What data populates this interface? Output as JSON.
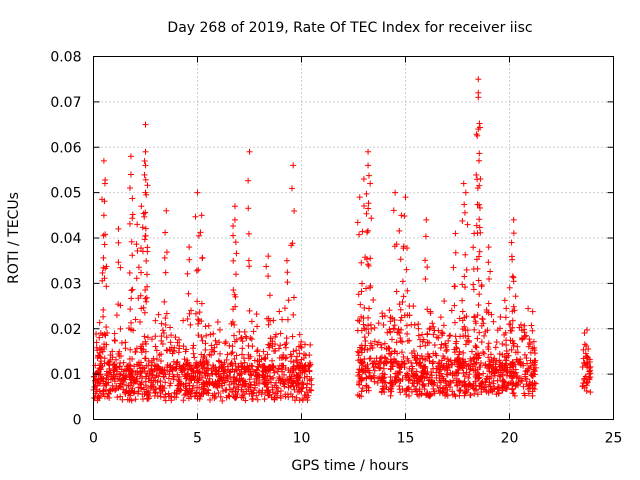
{
  "chart_data": {
    "type": "scatter",
    "title": "Day 268 of 2019, Rate Of TEC Index for receiver iisc",
    "xlabel": "GPS time / hours",
    "ylabel": "ROTI / TECUs",
    "xlim": [
      0,
      25
    ],
    "ylim": [
      0,
      0.08
    ],
    "x_ticks": [
      0,
      5,
      10,
      15,
      20,
      25
    ],
    "y_ticks": [
      0,
      0.01,
      0.02,
      0.03,
      0.04,
      0.05,
      0.06,
      0.07,
      0.08
    ],
    "y_tick_labels": [
      "0",
      "0.01",
      "0.02",
      "0.03",
      "0.04",
      "0.05",
      "0.06",
      "0.07",
      "0.08"
    ],
    "grid": true,
    "marker": "+",
    "series": [
      {
        "name": "ROTI",
        "color": "#ff0000",
        "segments": [
          {
            "t_start": 0.0,
            "t_end": 10.5,
            "base": 0.009,
            "spread": 0.012
          },
          {
            "t_start": 12.7,
            "t_end": 21.3,
            "base": 0.01,
            "spread": 0.015
          },
          {
            "t_start": 23.5,
            "t_end": 23.9,
            "base": 0.011,
            "spread": 0.007
          }
        ],
        "peaks": [
          [
            0.5,
            0.057
          ],
          [
            0.5,
            0.045
          ],
          [
            0.55,
            0.052
          ],
          [
            1.2,
            0.042
          ],
          [
            1.8,
            0.058
          ],
          [
            1.8,
            0.054
          ],
          [
            2.1,
            0.043
          ],
          [
            2.5,
            0.065
          ],
          [
            2.5,
            0.059
          ],
          [
            2.5,
            0.05
          ],
          [
            2.5,
            0.056
          ],
          [
            2.3,
            0.047
          ],
          [
            3.5,
            0.046
          ],
          [
            4.6,
            0.038
          ],
          [
            5.0,
            0.05
          ],
          [
            5.2,
            0.045
          ],
          [
            6.8,
            0.047
          ],
          [
            6.8,
            0.044
          ],
          [
            7.5,
            0.059
          ],
          [
            8.4,
            0.036
          ],
          [
            9.3,
            0.035
          ],
          [
            9.6,
            0.056
          ],
          [
            12.8,
            0.049
          ],
          [
            13.0,
            0.053
          ],
          [
            13.2,
            0.059
          ],
          [
            13.2,
            0.056
          ],
          [
            13.3,
            0.052
          ],
          [
            14.5,
            0.05
          ],
          [
            14.8,
            0.045
          ],
          [
            15.0,
            0.049
          ],
          [
            16.0,
            0.044
          ],
          [
            17.4,
            0.041
          ],
          [
            17.8,
            0.052
          ],
          [
            17.9,
            0.05
          ],
          [
            18.5,
            0.075
          ],
          [
            18.5,
            0.072
          ],
          [
            18.5,
            0.071
          ],
          [
            18.5,
            0.064
          ],
          [
            18.6,
            0.053
          ],
          [
            18.3,
            0.041
          ],
          [
            19.0,
            0.038
          ],
          [
            20.2,
            0.044
          ],
          [
            20.1,
            0.039
          ]
        ]
      }
    ]
  }
}
